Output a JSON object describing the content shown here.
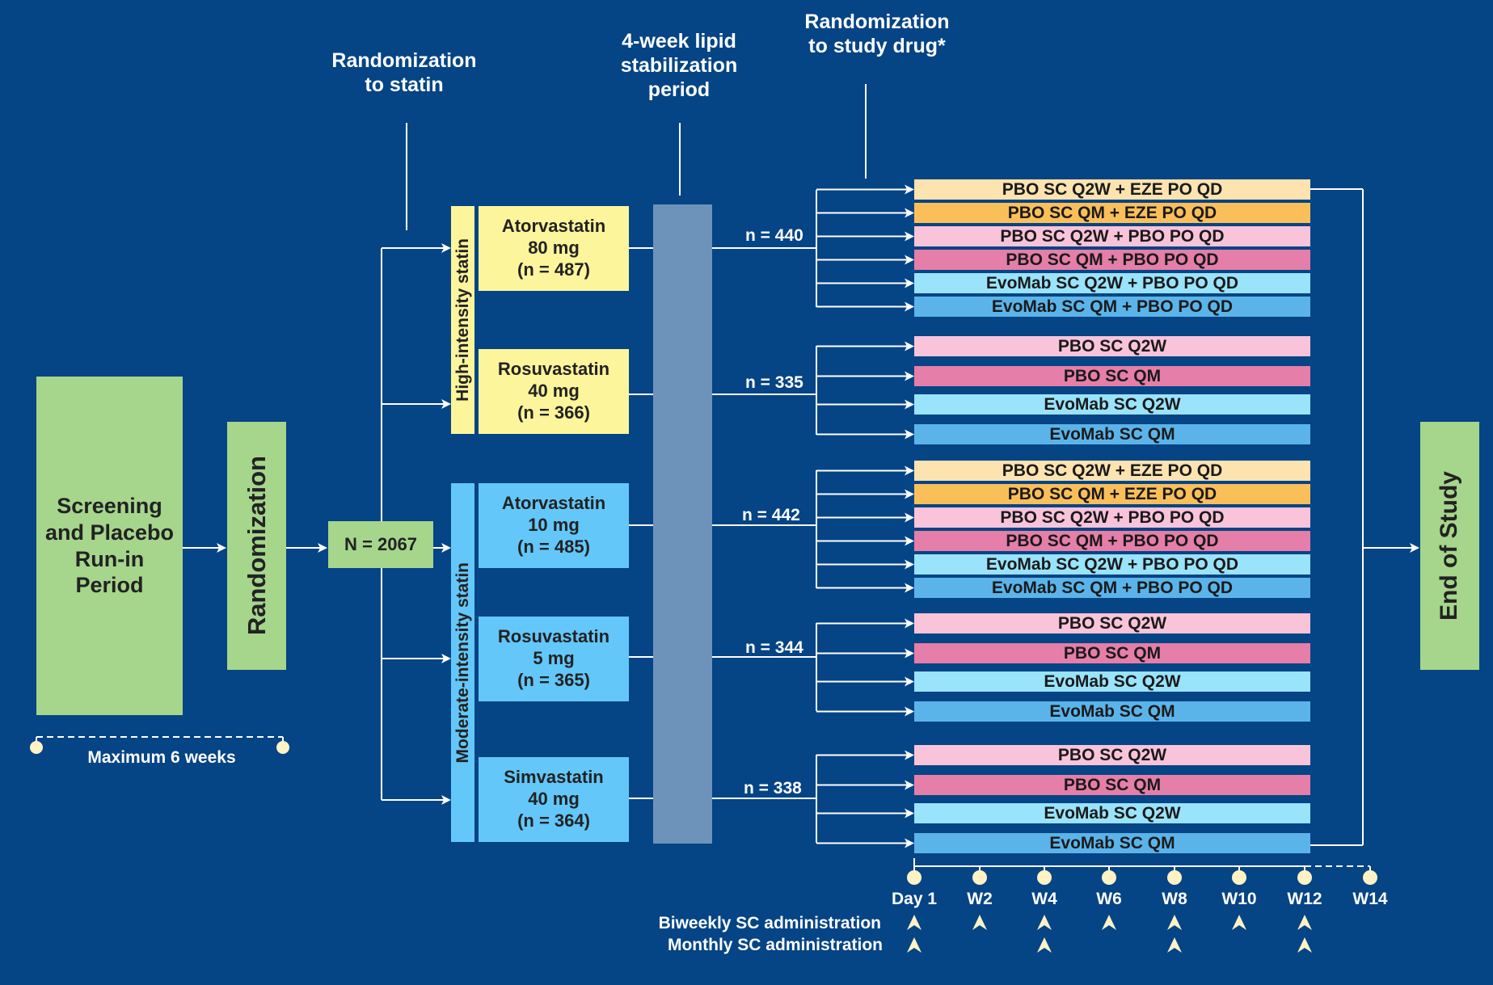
{
  "header": {
    "randomization_statin": "Randomization\nto statin",
    "stabilization": "4-week lipid\nstabilization\nperiod",
    "randomization_drug": "Randomization\nto study drug*"
  },
  "screening": "Screening\nand Placebo\nRun-in\nPeriod",
  "randomization": "Randomization",
  "max_weeks": "Maximum 6 weeks",
  "total_n": "N = 2067",
  "groups": {
    "high": "High-intensity statin",
    "moderate": "Moderate-intensity statin"
  },
  "statins": [
    {
      "label": "Atorvastatin\n80 mg\n(n = 487)",
      "n": "n = 440"
    },
    {
      "label": "Rosuvastatin\n40 mg\n(n = 366)",
      "n": "n = 335"
    },
    {
      "label": "Atorvastatin\n10 mg\n(n = 485)",
      "n": "n = 442"
    },
    {
      "label": "Rosuvastatin\n5 mg\n(n = 365)",
      "n": "n = 344"
    },
    {
      "label": "Simvastatin\n40 mg\n(n = 364)",
      "n": "n = 338"
    }
  ],
  "arms": {
    "six": [
      {
        "label": "PBO SC Q2W + EZE PO QD",
        "color": "#fde3b0"
      },
      {
        "label": "PBO SC QM + EZE PO QD",
        "color": "#fbbf5a"
      },
      {
        "label": "PBO SC Q2W + PBO PO QD",
        "color": "#f9c3da"
      },
      {
        "label": "PBO SC QM + PBO PO QD",
        "color": "#e57ea8"
      },
      {
        "label": "EvoMab SC Q2W + PBO PO QD",
        "color": "#99e3fb"
      },
      {
        "label": "EvoMab SC QM + PBO PO QD",
        "color": "#5ab4ea"
      }
    ],
    "four": [
      {
        "label": "PBO SC Q2W",
        "color": "#f9c3da"
      },
      {
        "label": "PBO SC QM",
        "color": "#e57ea8"
      },
      {
        "label": "EvoMab SC Q2W",
        "color": "#99e3fb"
      },
      {
        "label": "EvoMab SC QM",
        "color": "#5ab4ea"
      }
    ]
  },
  "end_of_study": "End of Study",
  "timeline": [
    "Day 1",
    "W2",
    "W4",
    "W6",
    "W8",
    "W10",
    "W12",
    "W14"
  ],
  "admin": {
    "biweekly": "Biweekly SC administration",
    "monthly": "Monthly SC administration"
  },
  "colors": {
    "background": "#054485",
    "green": "#a6d58c",
    "yellow": "#fdf59b",
    "blue": "#63c7f9",
    "stabilization_bar": "#6e93bb",
    "timeline_marker": "#fff2c4"
  }
}
